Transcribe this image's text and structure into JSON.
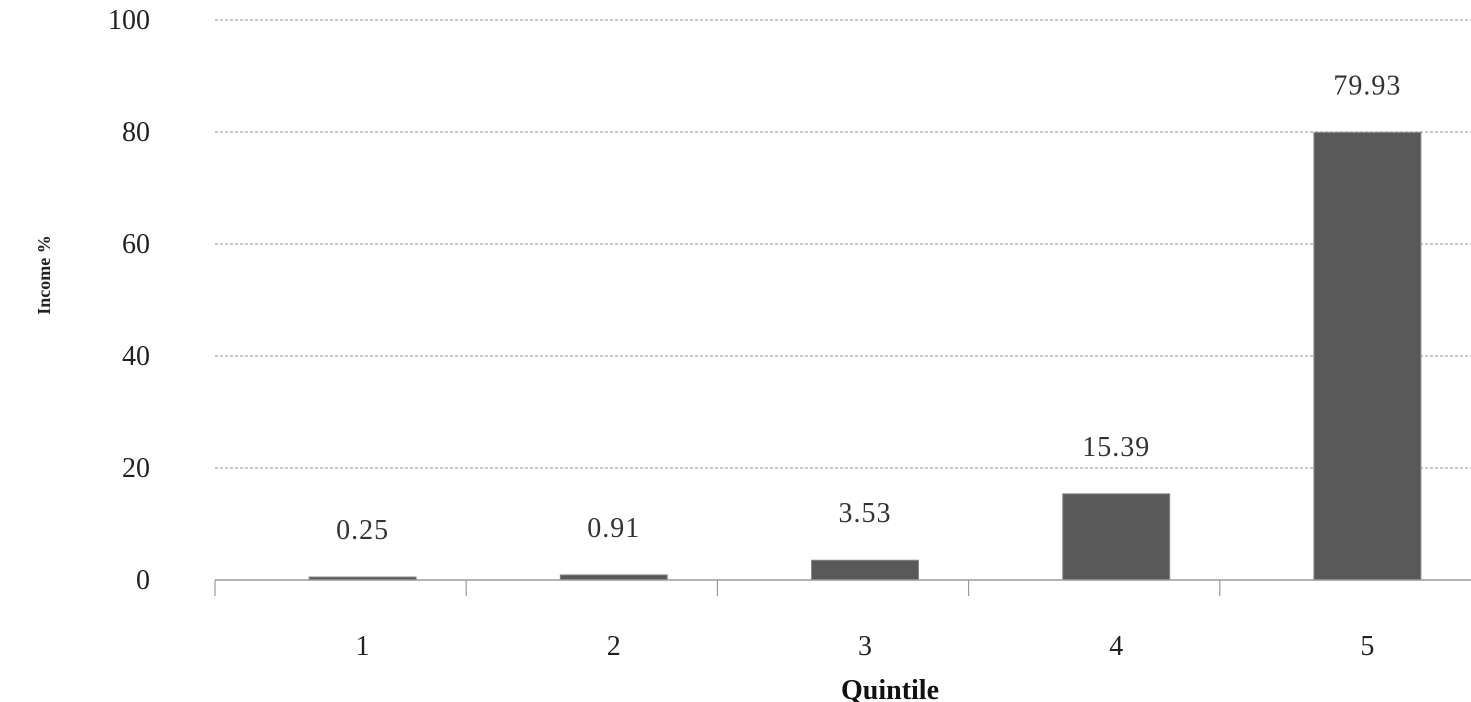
{
  "chart_data": {
    "type": "bar",
    "title": "",
    "xlabel": "Quintile",
    "ylabel": "Income %",
    "categories": [
      "1",
      "2",
      "3",
      "4",
      "5"
    ],
    "values": [
      0.25,
      0.91,
      3.53,
      15.39,
      79.93
    ],
    "data_labels": [
      "0.25",
      "0.91",
      "3.53",
      "15.39",
      "79.93"
    ],
    "ylim": [
      0,
      100
    ],
    "yticks": [
      0,
      20,
      40,
      60,
      80,
      100
    ],
    "ytick_labels": [
      "0",
      "20",
      "40",
      "60",
      "80",
      "100"
    ],
    "grid": true,
    "grid_style": "dashed",
    "legend": "none",
    "bar_color": "#595959",
    "grid_color": "#a6a6a6"
  }
}
